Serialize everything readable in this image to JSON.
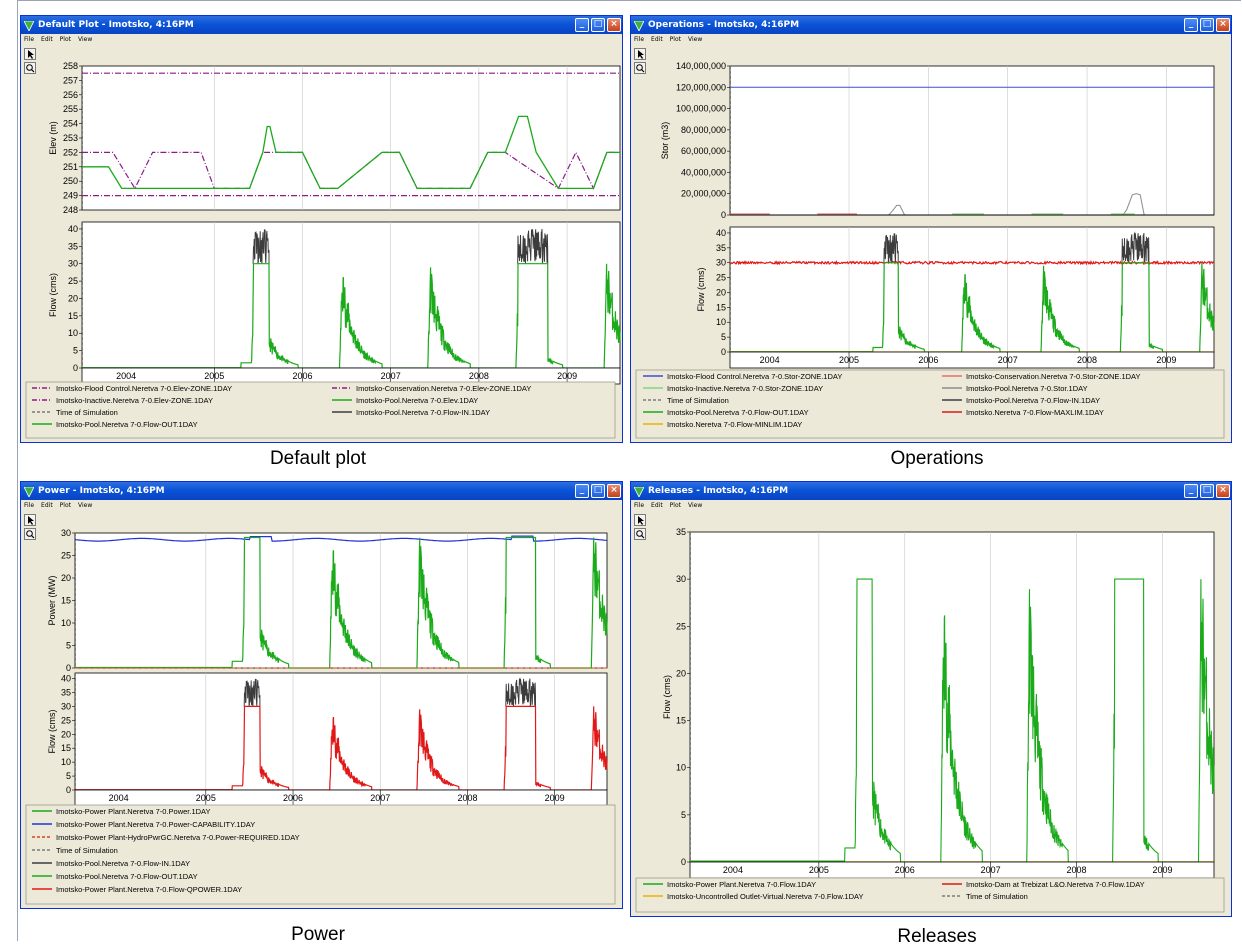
{
  "captions": {
    "default_plot": "Default plot",
    "operations": "Operations",
    "power": "Power",
    "releases": "Releases"
  },
  "menus": [
    "File",
    "Edit",
    "Plot",
    "View"
  ],
  "windows": {
    "default_plot": {
      "title": "Default Plot - Imotsko, 4:16PM",
      "elev_panel": {
        "ylabel": "Elev (m)",
        "yticks": [
          "258",
          "257",
          "256",
          "255",
          "254",
          "253",
          "252",
          "251",
          "250",
          "249",
          "248"
        ]
      },
      "flow_panel": {
        "ylabel": "Flow (cms)",
        "yticks": [
          "40",
          "35",
          "30",
          "25",
          "20",
          "15",
          "10",
          "5",
          "0"
        ]
      },
      "xticks": [
        "2004",
        "2005",
        "2006",
        "2007",
        "2008",
        "2009"
      ],
      "legend": [
        "Imotsko-Flood Control.Neretva 7-0.Elev-ZONE.1DAY",
        "Imotsko-Conservation.Neretva 7-0.Elev-ZONE.1DAY",
        "Imotsko-Inactive.Neretva 7-0.Elev-ZONE.1DAY",
        "Imotsko-Pool.Neretva 7-0.Elev.1DAY",
        "Time of Simulation",
        "Imotsko-Pool.Neretva 7-0.Flow-IN.1DAY",
        "Imotsko-Pool.Neretva 7-0.Flow-OUT.1DAY"
      ]
    },
    "operations": {
      "title": "Operations - Imotsko, 4:16PM",
      "stor_panel": {
        "ylabel": "Stor (m3)",
        "yticks": [
          "140,000,000",
          "120,000,000",
          "100,000,000",
          "80,000,000",
          "60,000,000",
          "40,000,000",
          "20,000,000",
          "0"
        ]
      },
      "flow_panel": {
        "ylabel": "Flow (cms)",
        "yticks": [
          "40",
          "35",
          "30",
          "25",
          "20",
          "15",
          "10",
          "5",
          "0"
        ]
      },
      "xticks": [
        "2004",
        "2005",
        "2006",
        "2007",
        "2008",
        "2009"
      ],
      "legend": [
        "Imotsko-Flood Control.Neretva 7-0.Stor-ZONE.1DAY",
        "Imotsko-Conservation.Neretva 7-0.Stor-ZONE.1DAY",
        "Imotsko-Inactive.Neretva 7-0.Stor-ZONE.1DAY",
        "Imotsko-Pool.Neretva 7-0.Stor.1DAY",
        "Time of Simulation",
        "Imotsko-Pool.Neretva 7-0.Flow-IN.1DAY",
        "Imotsko-Pool.Neretva 7-0.Flow-OUT.1DAY",
        "Imotsko.Neretva 7-0.Flow-MAXLIM.1DAY",
        "Imotsko.Neretva 7-0.Flow-MINLIM.1DAY"
      ]
    },
    "power": {
      "title": "Power - Imotsko, 4:16PM",
      "power_panel": {
        "ylabel": "Power (MW)",
        "yticks": [
          "30",
          "25",
          "20",
          "15",
          "10",
          "5",
          "0"
        ]
      },
      "flow_panel": {
        "ylabel": "Flow (cms)",
        "yticks": [
          "40",
          "35",
          "30",
          "25",
          "20",
          "15",
          "10",
          "5",
          "0"
        ]
      },
      "xticks": [
        "2004",
        "2005",
        "2006",
        "2007",
        "2008",
        "2009"
      ],
      "legend": [
        "Imotsko-Power Plant.Neretva 7-0.Power.1DAY",
        "Imotsko-Power Plant.Neretva 7-0.Power-CAPABILITY.1DAY",
        "Imotsko-Power Plant-HydroPwrGC.Neretva 7-0.Power-REQUIRED.1DAY",
        "Time of Simulation",
        "Imotsko-Pool.Neretva 7-0.Flow-IN.1DAY",
        "Imotsko-Pool.Neretva 7-0.Flow-OUT.1DAY",
        "Imotsko-Power Plant.Neretva 7-0.Flow-QPOWER.1DAY"
      ]
    },
    "releases": {
      "title": "Releases - Imotsko, 4:16PM",
      "flow_panel": {
        "ylabel": "Flow (cms)",
        "yticks": [
          "35",
          "30",
          "25",
          "20",
          "15",
          "10",
          "5",
          "0"
        ]
      },
      "xticks": [
        "2004",
        "2005",
        "2006",
        "2007",
        "2008",
        "2009"
      ],
      "legend": [
        "Imotsko-Power Plant.Neretva 7-0.Flow.1DAY",
        "Imotsko-Dam at Trebizat L&O.Neretva 7-0.Flow.1DAY",
        "Imotsko-Uncontrolled Outlet-Virtual.Neretva 7-0.Flow.1DAY",
        "Time of Simulation"
      ]
    }
  },
  "colors": {
    "flood_control_elev": "#8b1a8b",
    "conservation_elev": "#8b1a8b",
    "inactive_elev": "#8b1a8b",
    "pool": "#1aaa1a",
    "flow_in": "#3c3c3c",
    "flow_out": "#1aaa1a",
    "time_of_simulation": "#7a7a7a",
    "flood_control_stor": "#3b4fd8",
    "conservation_stor": "#e66e6e",
    "inactive_stor": "#7fd87f",
    "pool_stor": "#8c8c8c",
    "maxlim": "#e01818",
    "minlim": "#e8b400",
    "power": "#1aaa1a",
    "capability": "#2432d8",
    "required": "#e04020",
    "qpower": "#e01818",
    "release_plant": "#1aaa1a",
    "release_dam": "#e01818",
    "release_uncontrolled": "#e8b400"
  },
  "chart_data": [
    {
      "type": "line",
      "panel": "default_plot.elev",
      "xlim": [
        2003.5,
        2009.6
      ],
      "ylim": [
        248,
        258
      ],
      "series": [
        {
          "name": "Imotsko-Flood Control.Neretva 7-0.Elev-ZONE.1DAY",
          "x": [
            2003.5,
            2009.6
          ],
          "y": [
            257.5,
            257.5
          ]
        },
        {
          "name": "Imotsko-Inactive.Neretva 7-0.Elev-ZONE.1DAY",
          "x": [
            2003.5,
            2009.6
          ],
          "y": [
            249,
            249
          ]
        },
        {
          "name": "Imotsko-Conservation.Neretva 7-0.Elev-ZONE.1DAY",
          "x": [
            2003.5,
            2003.85,
            2004.1,
            2004.3,
            2004.85,
            2005.0,
            2005.4,
            2005.55,
            2006.0,
            2006.2,
            2006.4,
            2006.9,
            2007.1,
            2007.3,
            2007.9,
            2008.1,
            2008.3,
            2008.9,
            2009.1,
            2009.3,
            2009.45,
            2009.6
          ],
          "y": [
            252,
            252,
            249.5,
            252,
            252,
            249.5,
            249.5,
            252,
            252,
            249.5,
            249.5,
            252,
            252,
            249.5,
            249.5,
            252,
            252,
            249.5,
            252,
            249.5,
            252,
            252
          ]
        },
        {
          "name": "Imotsko-Pool.Neretva 7-0.Elev.1DAY",
          "x": [
            2003.5,
            2003.8,
            2003.95,
            2004.5,
            2005.0,
            2005.4,
            2005.55,
            2005.6,
            2005.63,
            2005.7,
            2006.0,
            2006.2,
            2006.4,
            2006.9,
            2007.1,
            2007.3,
            2007.9,
            2008.1,
            2008.3,
            2008.45,
            2008.55,
            2008.65,
            2008.9,
            2009.1,
            2009.3,
            2009.45,
            2009.6
          ],
          "y": [
            251,
            251,
            249.5,
            249.5,
            249.5,
            249.5,
            252,
            253.8,
            253.8,
            252,
            252,
            249.5,
            249.5,
            252,
            252,
            249.5,
            249.5,
            252,
            252,
            254.5,
            254.5,
            252,
            249.5,
            249.5,
            249.5,
            252,
            252
          ]
        }
      ]
    },
    {
      "type": "line",
      "panel": "default_plot.flow",
      "xlim": [
        2003.5,
        2009.6
      ],
      "ylim": [
        0,
        42
      ],
      "series": [
        {
          "name": "Imotsko-Pool.Neretva 7-0.Flow-IN.1DAY",
          "x": [
            2005.4,
            2005.47,
            2005.52,
            2005.6,
            2008.45,
            2008.55,
            2008.62,
            2008.7
          ],
          "y": [
            30,
            36,
            40,
            30,
            30,
            38,
            40,
            30
          ]
        },
        {
          "name": "Imotsko-Pool.Neretva 7-0.Flow-OUT.1DAY",
          "x": [
            2003.5,
            2005.3,
            2005.45,
            2005.6,
            2005.7,
            2006.0,
            2006.3,
            2006.4,
            2006.5,
            2007.0,
            2007.3,
            2007.45,
            2007.55,
            2008.0,
            2008.3,
            2008.45,
            2008.75,
            2009.0,
            2009.4,
            2009.6
          ],
          "y": [
            0,
            2,
            30,
            30,
            20,
            2,
            5,
            18,
            12,
            2,
            5,
            20,
            12,
            2,
            5,
            30,
            30,
            2,
            5,
            31
          ]
        }
      ]
    },
    {
      "type": "line",
      "panel": "operations.stor",
      "xlim": [
        2003.5,
        2009.6
      ],
      "ylim": [
        0,
        140000000
      ],
      "series": [
        {
          "name": "Imotsko-Flood Control.Neretva 7-0.Stor-ZONE.1DAY",
          "x": [
            2003.5,
            2009.6
          ],
          "y": [
            120000000,
            120000000
          ]
        },
        {
          "name": "Imotsko-Pool.Neretva 7-0.Stor.1DAY",
          "x": [
            2003.5,
            2005.5,
            2005.6,
            2005.7,
            2008.5,
            2008.6,
            2008.7,
            2009.6
          ],
          "y": [
            0,
            0,
            9000000,
            0,
            0,
            20000000,
            0,
            0
          ]
        }
      ]
    },
    {
      "type": "line",
      "panel": "operations.flow",
      "xlim": [
        2003.5,
        2009.6
      ],
      "ylim": [
        0,
        42
      ],
      "series": [
        {
          "name": "Imotsko.Neretva 7-0.Flow-MAXLIM.1DAY",
          "x": [
            2003.5,
            2009.6
          ],
          "y": [
            30,
            30
          ]
        },
        {
          "name": "Imotsko.Neretva 7-0.Flow-MINLIM.1DAY",
          "x": [
            2003.5,
            2009.6
          ],
          "y": [
            0,
            0
          ]
        }
      ]
    },
    {
      "type": "line",
      "panel": "power.power",
      "xlim": [
        2003.5,
        2009.6
      ],
      "ylim": [
        0,
        30
      ],
      "series": [
        {
          "name": "Imotsko-Power Plant.Neretva 7-0.Power-CAPABILITY.1DAY",
          "x": [
            2003.5,
            2005.5,
            2005.6,
            2008.6,
            2009.6
          ],
          "y": [
            28.5,
            28.5,
            29.2,
            29.3,
            28.5
          ]
        },
        {
          "name": "Imotsko-Power Plant.Neretva 7-0.Power.1DAY",
          "x": [
            2003.5,
            2005.3,
            2005.45,
            2005.6,
            2006.0,
            2006.45,
            2007.0,
            2007.45,
            2008.0,
            2008.45,
            2008.75,
            2009.0,
            2009.6
          ],
          "y": [
            0,
            2,
            29,
            29,
            2,
            17,
            2,
            19,
            2,
            29,
            29,
            2,
            29
          ]
        }
      ]
    },
    {
      "type": "line",
      "panel": "releases.flow",
      "xlim": [
        2003.5,
        2009.6
      ],
      "ylim": [
        0,
        35
      ],
      "series": [
        {
          "name": "Imotsko-Power Plant.Neretva 7-0.Flow.1DAY",
          "x": [
            2003.5,
            2005.3,
            2005.45,
            2005.6,
            2006.0,
            2006.45,
            2007.0,
            2007.45,
            2008.0,
            2008.45,
            2008.75,
            2009.0,
            2009.6
          ],
          "y": [
            0,
            2,
            30,
            30,
            2,
            29.5,
            2,
            29.5,
            2,
            30,
            30,
            2,
            30
          ]
        },
        {
          "name": "Imotsko-Uncontrolled Outlet-Virtual.Neretva 7-0.Flow.1DAY",
          "x": [
            2003.5,
            2009.6
          ],
          "y": [
            0,
            0
          ]
        }
      ]
    }
  ]
}
